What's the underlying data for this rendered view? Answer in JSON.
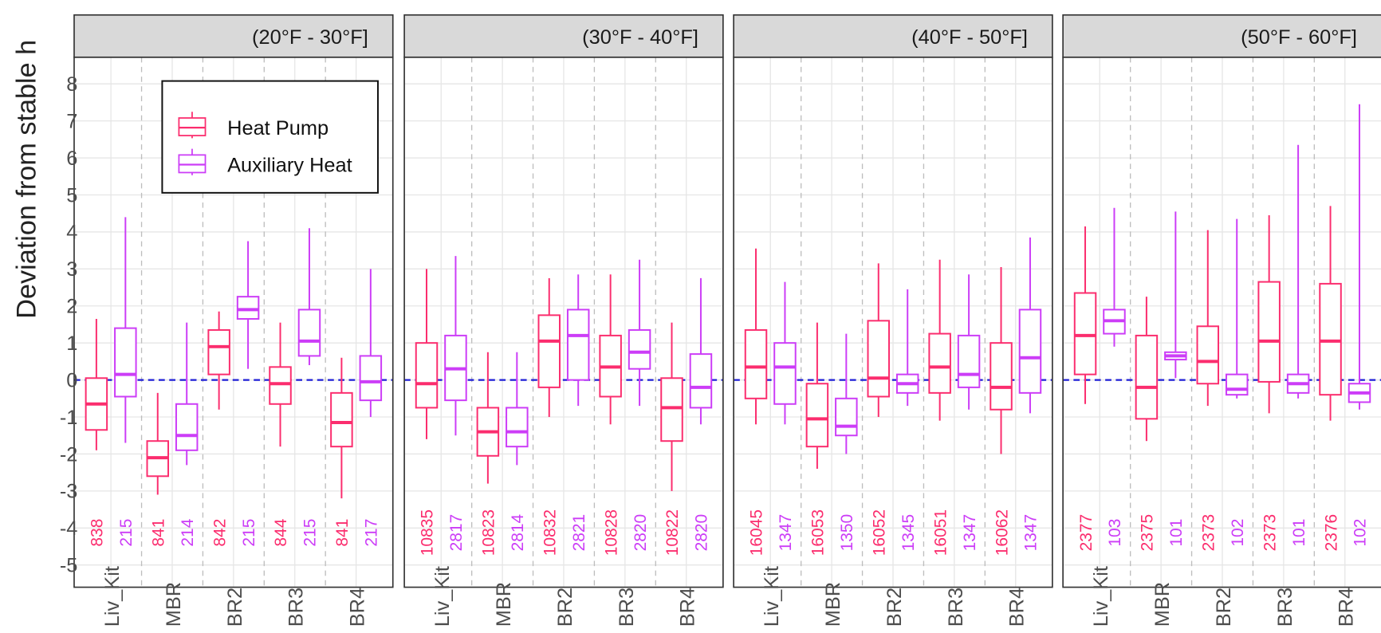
{
  "y_label": "Deviation from stable h",
  "chart_data": [
    {
      "type": "boxplot",
      "title": "(20°F - 30°F]",
      "categories": [
        "Liv_Kit",
        "MBR",
        "BR2",
        "BR3",
        "BR4"
      ],
      "ylim": [
        -5.6,
        8.72
      ],
      "yticks": [
        -5,
        -4,
        -3,
        -2,
        -1,
        0,
        1,
        2,
        3,
        4,
        5,
        6,
        7,
        8
      ],
      "grid": true,
      "reference_line": 0,
      "reference_color": "#1f1fd6",
      "legend": "top-left",
      "series": [
        {
          "name": "Heat Pump",
          "color": "#fb2d6e",
          "whislo": [
            -1.9,
            -3.1,
            -0.8,
            -1.8,
            -3.2
          ],
          "q1": [
            -1.35,
            -2.6,
            0.15,
            -0.65,
            -1.8
          ],
          "median": [
            -0.65,
            -2.1,
            0.9,
            -0.1,
            -1.15
          ],
          "q3": [
            0.05,
            -1.65,
            1.35,
            0.35,
            -0.35
          ],
          "whishi": [
            1.65,
            -0.35,
            1.85,
            1.55,
            0.6
          ],
          "counts": [
            838,
            841,
            842,
            844,
            841
          ]
        },
        {
          "name": "Auxiliary Heat",
          "color": "#cc3df7",
          "whislo": [
            -1.7,
            -2.3,
            0.3,
            0.4,
            -1.0
          ],
          "q1": [
            -0.45,
            -1.9,
            1.65,
            0.65,
            -0.55
          ],
          "median": [
            0.15,
            -1.5,
            1.9,
            1.05,
            -0.05
          ],
          "q3": [
            1.4,
            -0.65,
            2.25,
            1.9,
            0.65
          ],
          "whishi": [
            4.4,
            1.55,
            3.75,
            4.1,
            3.0
          ],
          "counts": [
            215,
            214,
            215,
            215,
            217
          ]
        }
      ]
    },
    {
      "type": "boxplot",
      "title": "(30°F - 40°F]",
      "categories": [
        "Liv_Kit",
        "MBR",
        "BR2",
        "BR3",
        "BR4"
      ],
      "ylim": [
        -5.6,
        8.72
      ],
      "yticks": [
        -5,
        -4,
        -3,
        -2,
        -1,
        0,
        1,
        2,
        3,
        4,
        5,
        6,
        7,
        8
      ],
      "grid": true,
      "reference_line": 0,
      "reference_color": "#1f1fd6",
      "series": [
        {
          "name": "Heat Pump",
          "color": "#fb2d6e",
          "whislo": [
            -1.6,
            -2.8,
            -1.0,
            -1.2,
            -3.0
          ],
          "q1": [
            -0.75,
            -2.05,
            -0.2,
            -0.45,
            -1.65
          ],
          "median": [
            -0.1,
            -1.4,
            1.05,
            0.35,
            -0.75
          ],
          "q3": [
            1.0,
            -0.75,
            1.75,
            1.2,
            0.05
          ],
          "whishi": [
            3.0,
            0.75,
            2.75,
            2.85,
            1.55
          ],
          "counts": [
            10835,
            10823,
            10832,
            10828,
            10822
          ]
        },
        {
          "name": "Auxiliary Heat",
          "color": "#cc3df7",
          "whislo": [
            -1.5,
            -2.3,
            -0.7,
            -0.7,
            -1.2
          ],
          "q1": [
            -0.55,
            -1.8,
            0,
            0.3,
            -0.75
          ],
          "median": [
            0.3,
            -1.4,
            1.2,
            0.75,
            -0.2
          ],
          "q3": [
            1.2,
            -0.75,
            1.9,
            1.35,
            0.7
          ],
          "whishi": [
            3.35,
            0.75,
            2.85,
            3.25,
            2.75
          ],
          "counts": [
            2817,
            2814,
            2821,
            2820,
            2820
          ]
        }
      ]
    },
    {
      "type": "boxplot",
      "title": "(40°F - 50°F]",
      "categories": [
        "Liv_Kit",
        "MBR",
        "BR2",
        "BR3",
        "BR4"
      ],
      "ylim": [
        -5.6,
        8.72
      ],
      "yticks": [
        -5,
        -4,
        -3,
        -2,
        -1,
        0,
        1,
        2,
        3,
        4,
        5,
        6,
        7,
        8
      ],
      "grid": true,
      "reference_line": 0,
      "reference_color": "#1f1fd6",
      "series": [
        {
          "name": "Heat Pump",
          "color": "#fb2d6e",
          "whislo": [
            -1.2,
            -2.4,
            -1.0,
            -1.1,
            -2.0
          ],
          "q1": [
            -0.5,
            -1.8,
            -0.45,
            -0.35,
            -0.8
          ],
          "median": [
            0.35,
            -1.05,
            0.05,
            0.35,
            -0.2
          ],
          "q3": [
            1.35,
            -0.1,
            1.6,
            1.25,
            1.0
          ],
          "whishi": [
            3.55,
            1.55,
            3.15,
            3.25,
            3.05
          ],
          "counts": [
            16045,
            16053,
            16052,
            16051,
            16062
          ]
        },
        {
          "name": "Auxiliary Heat",
          "color": "#cc3df7",
          "whislo": [
            -1.2,
            -2.0,
            -0.7,
            -0.8,
            -0.9
          ],
          "q1": [
            -0.65,
            -1.5,
            -0.35,
            -0.2,
            -0.35
          ],
          "median": [
            0.35,
            -1.25,
            -0.1,
            0.15,
            0.6
          ],
          "q3": [
            1.0,
            -0.5,
            0.15,
            1.2,
            1.9
          ],
          "whishi": [
            2.65,
            1.25,
            2.45,
            2.85,
            3.85
          ],
          "counts": [
            1347,
            1350,
            1345,
            1347,
            1347
          ]
        }
      ]
    },
    {
      "type": "boxplot",
      "title": "(50°F - 60°F]",
      "categories": [
        "Liv_Kit",
        "MBR",
        "BR2",
        "BR3",
        "BR4"
      ],
      "ylim": [
        -5.6,
        8.72
      ],
      "yticks": [
        -5,
        -4,
        -3,
        -2,
        -1,
        0,
        1,
        2,
        3,
        4,
        5,
        6,
        7,
        8
      ],
      "grid": true,
      "reference_line": 0,
      "reference_color": "#1f1fd6",
      "series": [
        {
          "name": "Heat Pump",
          "color": "#fb2d6e",
          "whislo": [
            -0.65,
            -1.65,
            -0.7,
            -0.9,
            -1.1
          ],
          "q1": [
            0.15,
            -1.05,
            -0.1,
            -0.05,
            -0.4
          ],
          "median": [
            1.2,
            -0.2,
            0.5,
            1.05,
            1.05
          ],
          "q3": [
            2.35,
            1.2,
            1.45,
            2.65,
            2.6
          ],
          "whishi": [
            4.15,
            2.25,
            4.05,
            4.45,
            4.7
          ],
          "counts": [
            2377,
            2375,
            2373,
            2373,
            2376
          ]
        },
        {
          "name": "Auxiliary Heat",
          "color": "#cc3df7",
          "whislo": [
            0.9,
            0.05,
            -0.5,
            -0.5,
            -0.8
          ],
          "q1": [
            1.25,
            0.55,
            -0.4,
            -0.35,
            -0.6
          ],
          "median": [
            1.6,
            0.65,
            -0.25,
            -0.1,
            -0.35
          ],
          "q3": [
            1.9,
            0.75,
            0.15,
            0.15,
            -0.1
          ],
          "whishi": [
            4.65,
            4.55,
            4.35,
            6.35,
            7.45
          ],
          "counts": [
            103,
            101,
            102,
            101,
            102
          ]
        }
      ]
    }
  ]
}
